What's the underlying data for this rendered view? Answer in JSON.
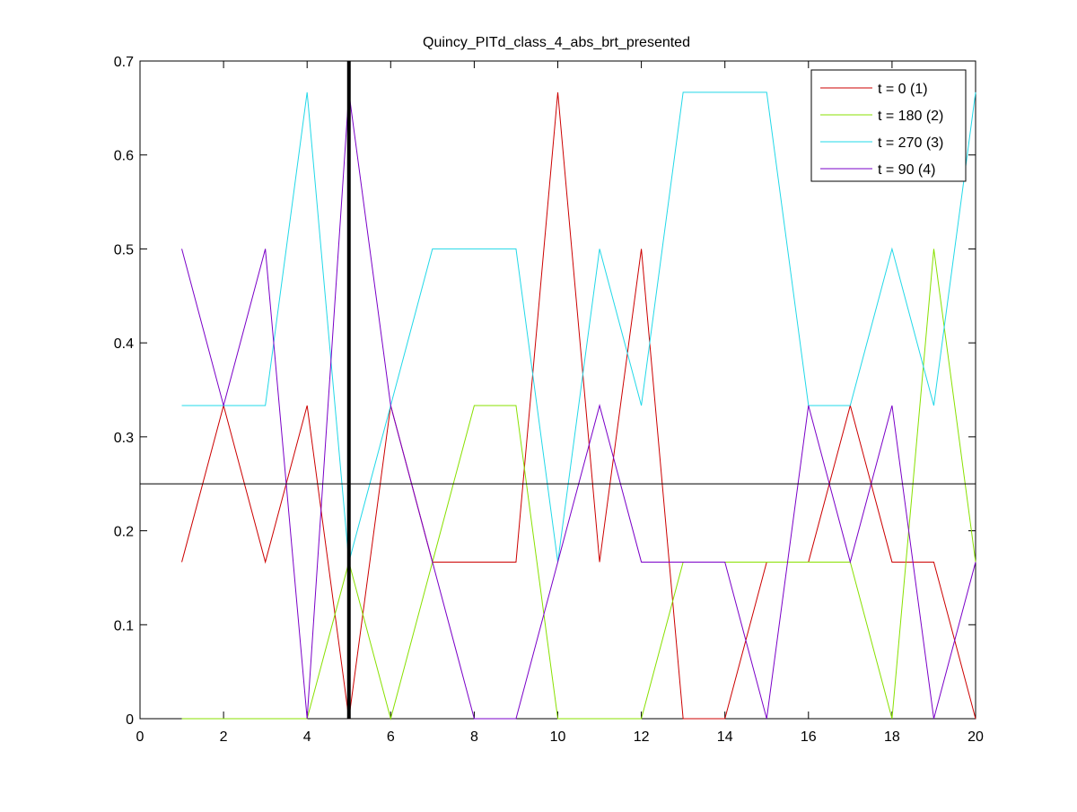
{
  "chart_data": {
    "type": "line",
    "title": "Quincy_PITd_class_4_abs_brt_presented",
    "xlabel": "",
    "ylabel": "",
    "xlim": [
      0,
      20
    ],
    "ylim": [
      0,
      0.7
    ],
    "xticks": [
      0,
      2,
      4,
      6,
      8,
      10,
      12,
      14,
      16,
      18,
      20
    ],
    "yticks": [
      0,
      0.1,
      0.2,
      0.3,
      0.4,
      0.5,
      0.6,
      0.7
    ],
    "grid": false,
    "legend_position": "top-right",
    "x": [
      1,
      2,
      3,
      4,
      5,
      6,
      7,
      8,
      9,
      10,
      11,
      12,
      13,
      14,
      15,
      16,
      17,
      18,
      19,
      20
    ],
    "series": [
      {
        "name": "t = 0 (1)",
        "color": "#cc0000",
        "values": [
          0.1667,
          0.3333,
          0.1667,
          0.3333,
          0.0,
          0.3333,
          0.1667,
          0.1667,
          0.1667,
          0.6667,
          0.1667,
          0.5,
          0.0,
          0.0,
          0.1667,
          0.1667,
          0.3333,
          0.1667,
          0.1667,
          0.0
        ]
      },
      {
        "name": "t = 180 (2)",
        "color": "#88e000",
        "values": [
          0.0,
          0.0,
          0.0,
          0.0,
          0.1667,
          0.0,
          0.1667,
          0.3333,
          0.3333,
          0.0,
          0.0,
          0.0,
          0.1667,
          0.1667,
          0.1667,
          0.1667,
          0.1667,
          0.0,
          0.5,
          0.1667
        ]
      },
      {
        "name": "t = 270 (3)",
        "color": "#22d8e8",
        "values": [
          0.3333,
          0.3333,
          0.3333,
          0.6667,
          0.1667,
          0.3333,
          0.5,
          0.5,
          0.5,
          0.1667,
          0.5,
          0.3333,
          0.6667,
          0.6667,
          0.6667,
          0.3333,
          0.3333,
          0.5,
          0.3333,
          0.6667
        ]
      },
      {
        "name": "t = 90 (4)",
        "color": "#7a00c8",
        "values": [
          0.5,
          0.3333,
          0.5,
          0.0,
          0.6667,
          0.3333,
          0.1667,
          0.0,
          0.0,
          0.1667,
          0.3333,
          0.1667,
          0.1667,
          0.1667,
          0.0,
          0.3333,
          0.1667,
          0.3333,
          0.0,
          0.1667
        ]
      }
    ],
    "reference_lines": [
      {
        "orientation": "horizontal",
        "value": 0.25,
        "color": "#000000"
      },
      {
        "orientation": "vertical",
        "value": 5,
        "color": "#000000"
      }
    ]
  }
}
